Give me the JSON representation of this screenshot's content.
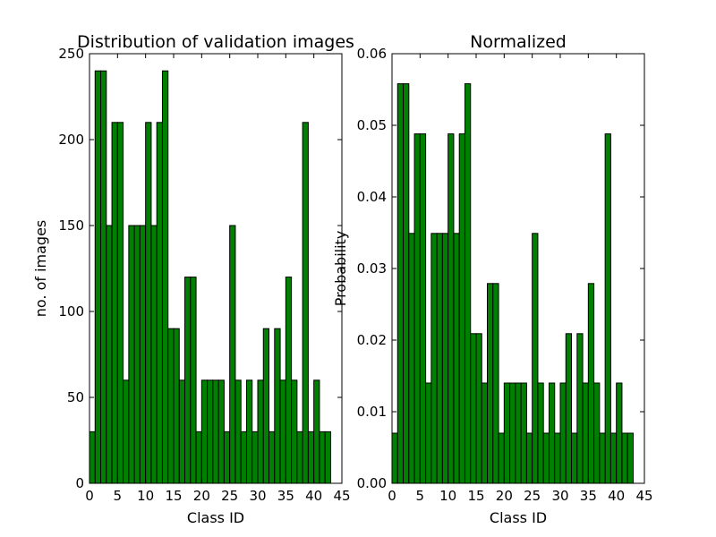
{
  "chart_data": [
    {
      "type": "bar",
      "title": "Distribution of validation images",
      "xlabel": "Class ID",
      "ylabel": "no. of images",
      "xlim": [
        0,
        45
      ],
      "ylim": [
        0,
        250
      ],
      "xticks": [
        0,
        5,
        10,
        15,
        20,
        25,
        30,
        35,
        40,
        45
      ],
      "yticks": [
        0,
        50,
        100,
        150,
        200,
        250
      ],
      "ytick_labels": [
        "0",
        "50",
        "100",
        "150",
        "200",
        "250"
      ],
      "grid": false,
      "bar_color": "#008000",
      "bar_edge_color": "#000000",
      "x": [
        0,
        1,
        2,
        3,
        4,
        5,
        6,
        7,
        8,
        9,
        10,
        11,
        12,
        13,
        14,
        15,
        16,
        17,
        18,
        19,
        20,
        21,
        22,
        23,
        24,
        25,
        26,
        27,
        28,
        29,
        30,
        31,
        32,
        33,
        34,
        35,
        36,
        37,
        38,
        39,
        40,
        41,
        42
      ],
      "values": [
        30,
        240,
        240,
        150,
        210,
        210,
        60,
        150,
        150,
        150,
        210,
        150,
        210,
        240,
        90,
        90,
        60,
        120,
        120,
        30,
        60,
        60,
        60,
        60,
        30,
        150,
        60,
        30,
        60,
        30,
        60,
        90,
        30,
        90,
        60,
        120,
        60,
        30,
        210,
        30,
        60,
        30,
        30
      ]
    },
    {
      "type": "bar",
      "title": "Normalized",
      "xlabel": "Class ID",
      "ylabel": "Probability",
      "xlim": [
        0,
        45
      ],
      "ylim": [
        0,
        0.06
      ],
      "xticks": [
        0,
        5,
        10,
        15,
        20,
        25,
        30,
        35,
        40,
        45
      ],
      "yticks": [
        0,
        0.01,
        0.02,
        0.03,
        0.04,
        0.05,
        0.06
      ],
      "ytick_labels": [
        "0.00",
        "0.01",
        "0.02",
        "0.03",
        "0.04",
        "0.05",
        "0.06"
      ],
      "grid": false,
      "bar_color": "#008000",
      "bar_edge_color": "#000000",
      "x": [
        0,
        1,
        2,
        3,
        4,
        5,
        6,
        7,
        8,
        9,
        10,
        11,
        12,
        13,
        14,
        15,
        16,
        17,
        18,
        19,
        20,
        21,
        22,
        23,
        24,
        25,
        26,
        27,
        28,
        29,
        30,
        31,
        32,
        33,
        34,
        35,
        36,
        37,
        38,
        39,
        40,
        41,
        42
      ],
      "values": [
        0.007,
        0.0558,
        0.0558,
        0.0349,
        0.0488,
        0.0488,
        0.014,
        0.0349,
        0.0349,
        0.0349,
        0.0488,
        0.0349,
        0.0488,
        0.0558,
        0.0209,
        0.0209,
        0.014,
        0.0279,
        0.0279,
        0.007,
        0.014,
        0.014,
        0.014,
        0.014,
        0.007,
        0.0349,
        0.014,
        0.007,
        0.014,
        0.007,
        0.014,
        0.0209,
        0.007,
        0.0209,
        0.014,
        0.0279,
        0.014,
        0.007,
        0.0488,
        0.007,
        0.014,
        0.007,
        0.007
      ]
    }
  ]
}
